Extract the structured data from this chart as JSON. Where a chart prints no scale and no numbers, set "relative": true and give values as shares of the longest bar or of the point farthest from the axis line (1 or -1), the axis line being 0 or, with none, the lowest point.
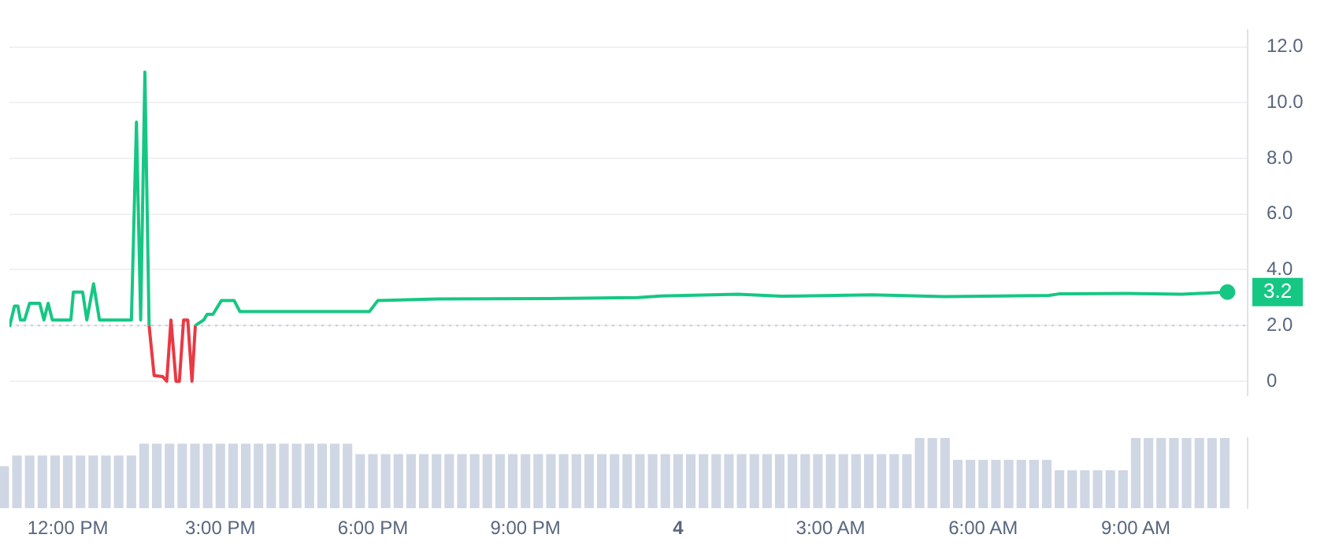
{
  "chart_data": [
    {
      "type": "line",
      "xlim": [
        "--01-03T10:40",
        "--01-04T11:12"
      ],
      "ylim": [
        -0.5,
        12.6
      ],
      "tick_labels": "y",
      "yticks": [
        0,
        {
          "value": 2,
          "label": "2.0"
        },
        {
          "value": 4,
          "label": "4.0"
        },
        {
          "value": 6,
          "label": "6.0"
        },
        {
          "value": 8,
          "label": "8.0"
        },
        {
          "value": 10,
          "label": "10.0"
        },
        {
          "value": 12,
          "label": "12.0"
        }
      ],
      "grid": "y",
      "line_style": "solid",
      "ref_lines": [
        {
          "axis": "y",
          "value": 2.0,
          "color": "#c8ccd4",
          "line_style": "dotted"
        }
      ],
      "series": [
        {
          "color": "#16c784",
          "x": [
            "--01-03T10:40",
            "--01-03T10:46",
            "--01-03T10:50",
            "--01-03T10:53",
            "--01-03T10:58",
            "--01-03T11:04",
            "--01-03T11:16",
            "--01-03T11:21",
            "--01-03T11:26",
            "--01-03T11:31",
            "--01-03T11:53",
            "--01-03T11:56",
            "--01-03T12:07",
            "--01-03T12:12",
            "--01-03T12:20",
            "--01-03T12:27",
            "--01-03T13:05",
            "--01-03T13:11",
            "--01-03T13:16",
            "--01-03T13:21",
            "--01-03T13:26",
            "--01-03T13:54",
            "--01-03T14:21",
            "--01-03T14:31",
            "--01-03T14:35",
            "--01-03T14:42",
            "--01-03T14:52",
            "--01-03T15:07",
            "--01-03T15:14",
            "--01-03T17:48",
            "--01-03T17:58",
            "--01-03T19:09",
            "--01-03T21:21",
            "--01-03T23:07",
            "--01-03T23:34",
            "--01-04T01:06",
            "--01-04T01:58",
            "--01-04T03:45",
            "--01-04T05:11",
            "--01-04T07:16",
            "--01-04T07:29",
            "--01-04T08:49",
            "--01-04T09:54",
            "--01-04T10:48"
          ],
          "values": [
            1.95,
            2.7,
            2.7,
            2.2,
            2.2,
            2.8,
            2.8,
            2.2,
            2.8,
            2.2,
            2.2,
            3.2,
            3.2,
            2.2,
            3.5,
            2.2,
            2.2,
            9.3,
            2.2,
            11.1,
            2.0,
            null,
            2.0,
            2.2,
            2.4,
            2.4,
            2.9,
            2.9,
            2.5,
            2.5,
            2.9,
            2.95,
            2.97,
            3.0,
            3.06,
            3.12,
            3.05,
            3.1,
            3.04,
            3.08,
            3.14,
            3.15,
            3.12,
            3.2
          ],
          "value_labels": [
            null,
            null,
            null,
            null,
            null,
            null,
            null,
            null,
            null,
            null,
            null,
            null,
            null,
            null,
            null,
            null,
            null,
            null,
            null,
            null,
            null,
            null,
            null,
            null,
            null,
            null,
            null,
            null,
            null,
            null,
            null,
            null,
            null,
            null,
            null,
            null,
            null,
            null,
            null,
            null,
            null,
            null,
            null,
            "3.2"
          ]
        },
        {
          "color": "#ea3943",
          "x": [
            "--01-03T13:26",
            "--01-03T13:32",
            "--01-03T13:42",
            "--01-03T13:47",
            "--01-03T13:52",
            "--01-03T13:58",
            "--01-03T14:02",
            "--01-03T14:07",
            "--01-03T14:12",
            "--01-03T14:17",
            "--01-03T14:21"
          ],
          "values": [
            2.0,
            0.2,
            0.17,
            0,
            2.2,
            0,
            0,
            2.2,
            2.2,
            0,
            2.0
          ]
        }
      ]
    },
    {
      "type": "bar",
      "relative": true,
      "xlim": [
        "--01-03T10:40",
        "--01-04T11:12"
      ],
      "tick_labels": "x",
      "xticks": [
        {
          "value": "--01-03T12:00",
          "label": "12:00 PM"
        },
        {
          "value": "--01-03T15:00",
          "label": "3:00 PM"
        },
        {
          "value": "--01-03T18:00",
          "label": "6:00 PM"
        },
        {
          "value": "--01-03T21:00",
          "label": "9:00 PM"
        },
        {
          "value": "--01-04T00:00",
          "label": "4"
        },
        {
          "value": "--01-04T03:00",
          "label": "3:00 AM"
        },
        {
          "value": "--01-04T06:00",
          "label": "6:00 AM"
        },
        {
          "value": "--01-04T09:00",
          "label": "9:00 AM"
        }
      ],
      "series": [
        {
          "color": "#cfd6e4",
          "x": [
            "--01-03T10:45",
            "--01-03T11:00",
            "--01-03T11:15",
            "--01-03T11:30",
            "--01-03T11:45",
            "--01-03T12:00",
            "--01-03T12:15",
            "--01-03T12:30",
            "--01-03T12:45",
            "--01-03T13:00",
            "--01-03T13:15",
            "--01-03T13:30",
            "--01-03T13:45",
            "--01-03T14:00",
            "--01-03T14:15",
            "--01-03T14:30",
            "--01-03T14:45",
            "--01-03T15:00",
            "--01-03T15:15",
            "--01-03T15:30",
            "--01-03T15:45",
            "--01-03T16:00",
            "--01-03T16:15",
            "--01-03T16:30",
            "--01-03T16:45",
            "--01-03T17:00",
            "--01-03T17:15",
            "--01-03T17:30",
            "--01-03T17:45",
            "--01-03T18:00",
            "--01-03T18:15",
            "--01-03T18:30",
            "--01-03T18:45",
            "--01-03T19:00",
            "--01-03T19:15",
            "--01-03T19:30",
            "--01-03T19:45",
            "--01-03T20:00",
            "--01-03T20:15",
            "--01-03T20:30",
            "--01-03T20:45",
            "--01-03T21:00",
            "--01-03T21:15",
            "--01-03T21:30",
            "--01-03T21:45",
            "--01-03T22:00",
            "--01-03T22:15",
            "--01-03T22:30",
            "--01-03T22:45",
            "--01-03T23:00",
            "--01-03T23:15",
            "--01-03T23:30",
            "--01-03T23:45",
            "--01-04T00:00",
            "--01-04T00:15",
            "--01-04T00:30",
            "--01-04T00:45",
            "--01-04T01:00",
            "--01-04T01:15",
            "--01-04T01:30",
            "--01-04T01:45",
            "--01-04T02:00",
            "--01-04T02:15",
            "--01-04T02:30",
            "--01-04T02:45",
            "--01-04T03:00",
            "--01-04T03:15",
            "--01-04T03:30",
            "--01-04T03:45",
            "--01-04T04:00",
            "--01-04T04:15",
            "--01-04T04:30",
            "--01-04T04:45",
            "--01-04T05:00",
            "--01-04T05:15",
            "--01-04T05:30",
            "--01-04T05:45",
            "--01-04T06:00",
            "--01-04T06:15",
            "--01-04T06:30",
            "--01-04T06:45",
            "--01-04T07:00",
            "--01-04T07:15",
            "--01-04T07:30",
            "--01-04T07:45",
            "--01-04T08:00",
            "--01-04T08:15",
            "--01-04T08:30",
            "--01-04T08:45",
            "--01-04T09:00",
            "--01-04T09:15",
            "--01-04T09:30",
            "--01-04T09:45",
            "--01-04T10:00",
            "--01-04T10:15",
            "--01-04T10:30",
            "--01-04T10:45"
          ],
          "values": [
            0.6,
            0.75,
            0.75,
            0.75,
            0.75,
            0.75,
            0.75,
            0.75,
            0.75,
            0.75,
            0.75,
            0.92,
            0.92,
            0.92,
            0.92,
            0.92,
            0.92,
            0.92,
            0.92,
            0.92,
            0.92,
            0.92,
            0.92,
            0.92,
            0.92,
            0.92,
            0.92,
            0.92,
            0.77,
            0.77,
            0.77,
            0.77,
            0.77,
            0.77,
            0.77,
            0.77,
            0.77,
            0.77,
            0.77,
            0.77,
            0.77,
            0.77,
            0.77,
            0.77,
            0.77,
            0.77,
            0.77,
            0.77,
            0.77,
            0.77,
            0.77,
            0.77,
            0.77,
            0.77,
            0.77,
            0.77,
            0.77,
            0.77,
            0.77,
            0.77,
            0.77,
            0.77,
            0.77,
            0.77,
            0.77,
            0.77,
            0.77,
            0.77,
            0.77,
            0.77,
            0.77,
            0.77,
            1,
            1,
            1,
            0.69,
            0.69,
            0.69,
            0.69,
            0.69,
            0.69,
            0.69,
            0.69,
            0.54,
            0.54,
            0.54,
            0.54,
            0.54,
            0.54,
            1,
            1,
            1,
            1,
            1,
            1,
            1,
            1
          ]
        }
      ]
    }
  ]
}
